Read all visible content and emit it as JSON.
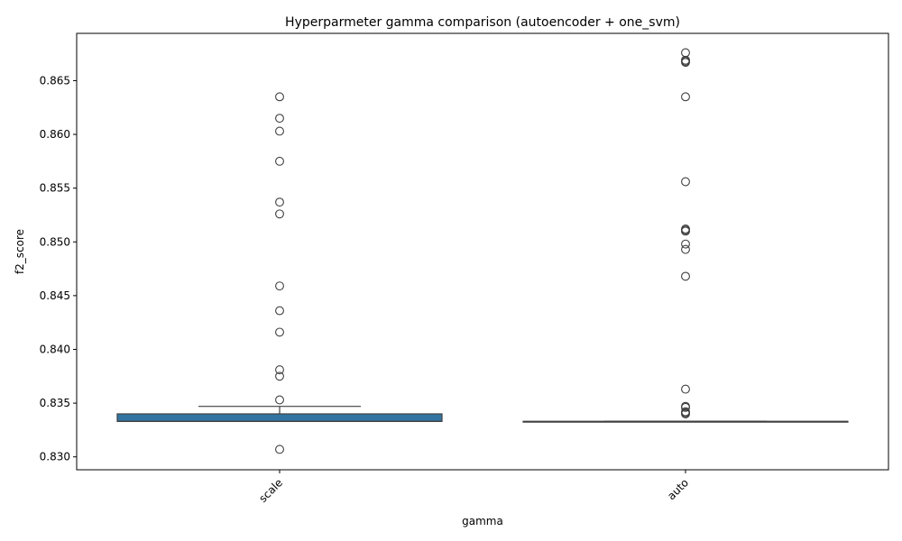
{
  "chart_data": {
    "type": "box",
    "title": "Hyperparmeter gamma comparison (autoencoder + one_svm)",
    "xlabel": "gamma",
    "ylabel": "f2_score",
    "categories": [
      "scale",
      "auto"
    ],
    "ylim": [
      0.8288,
      0.8694
    ],
    "yticks": [
      0.83,
      0.835,
      0.84,
      0.845,
      0.85,
      0.855,
      0.86,
      0.865
    ],
    "ytick_labels": [
      "0.830",
      "0.835",
      "0.840",
      "0.845",
      "0.850",
      "0.855",
      "0.860",
      "0.865"
    ],
    "grid": false,
    "box_color": "#3274a1",
    "line_color": "#3f3f3f",
    "boxes": [
      {
        "category": "scale",
        "whisker_low": 0.8333,
        "q1": 0.8333,
        "median": 0.8333,
        "q3": 0.834,
        "whisker_high": 0.8347,
        "outliers": [
          0.8307,
          0.8353,
          0.8375,
          0.8381,
          0.8416,
          0.8436,
          0.8459,
          0.8526,
          0.8537,
          0.8575,
          0.8603,
          0.8615,
          0.8635
        ]
      },
      {
        "category": "auto",
        "whisker_low": 0.8333,
        "q1": 0.8333,
        "median": 0.8333,
        "q3": 0.8333,
        "whisker_high": 0.8333,
        "outliers": [
          0.834,
          0.8341,
          0.8342,
          0.8346,
          0.8347,
          0.8363,
          0.8468,
          0.8493,
          0.8498,
          0.851,
          0.8511,
          0.8512,
          0.8556,
          0.8635,
          0.8667,
          0.8668,
          0.8669,
          0.8676
        ]
      }
    ]
  }
}
